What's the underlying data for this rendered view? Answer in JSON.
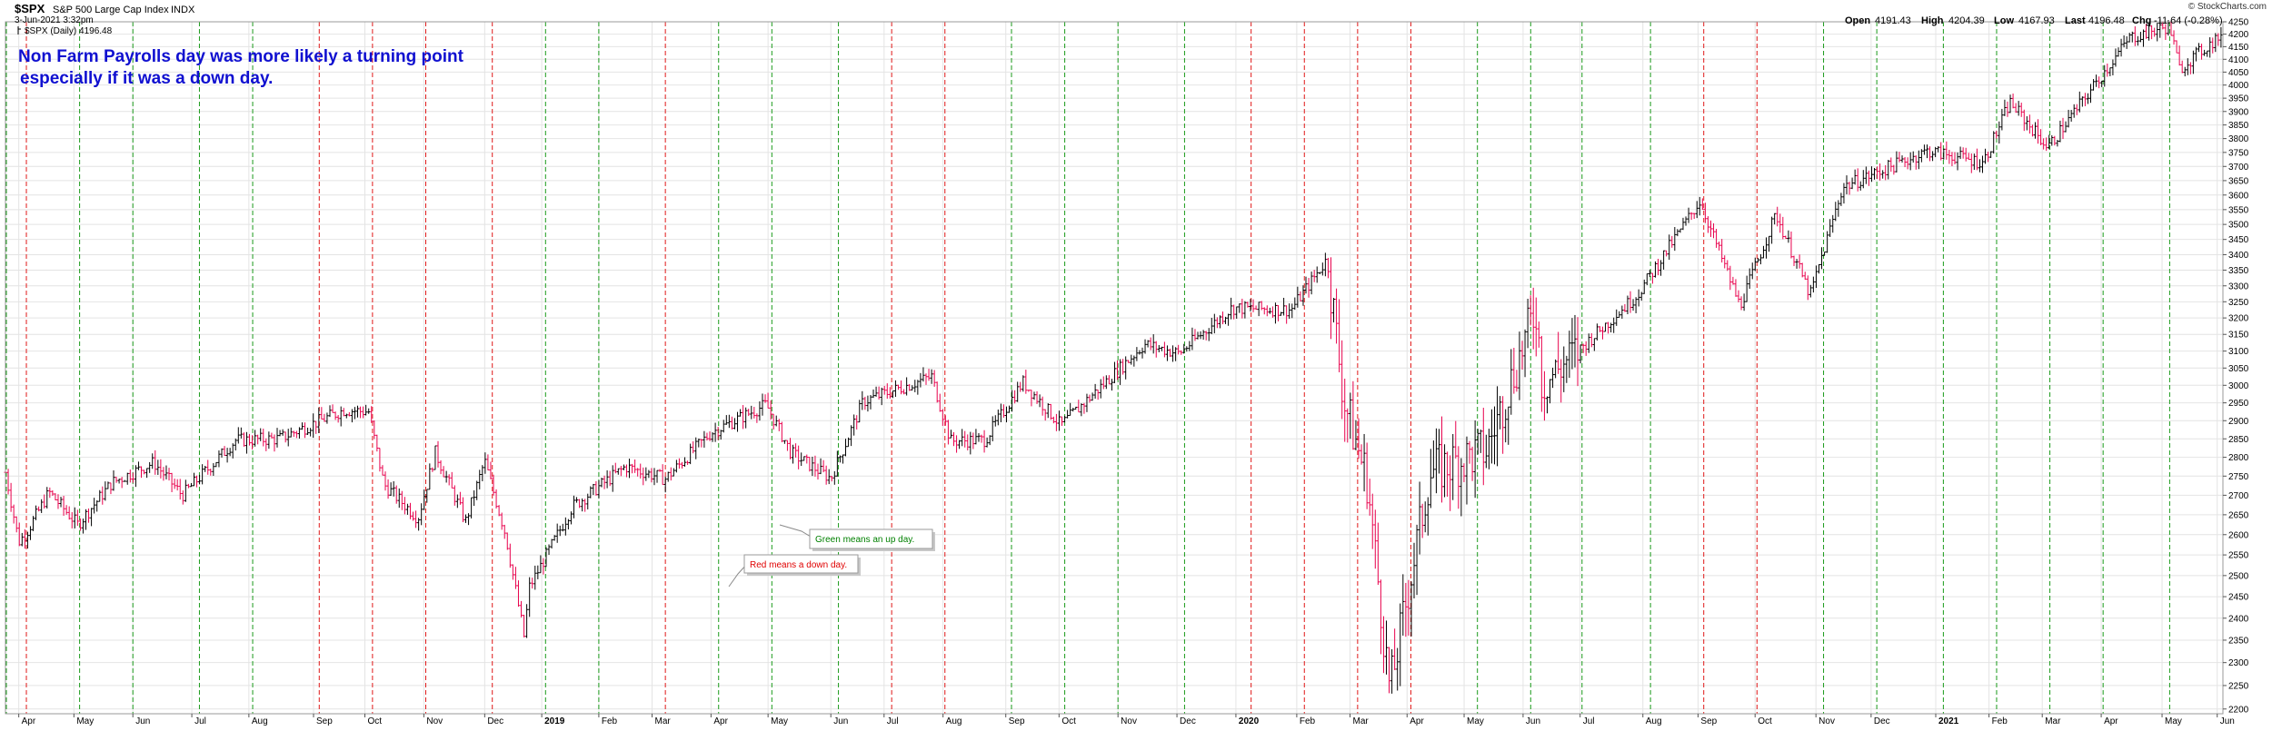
{
  "header": {
    "symbol": "$SPX",
    "name": "S&P 500 Large Cap Index",
    "exchange": "INDX",
    "date": "3-Jun-2021 3:32pm",
    "source": "© StockCharts.com",
    "series_label": "$SPX (Daily) 4196.48",
    "ohlc": {
      "open_label": "Open",
      "open": "4191.43",
      "high_label": "High",
      "high": "4204.39",
      "low_label": "Low",
      "low": "4167.93",
      "last_label": "Last",
      "last": "4196.48",
      "chg_label": "Chg",
      "chg": "-11.64 (-0.28%)"
    }
  },
  "annotation": {
    "line1": "Non Farm Payrolls day was more likely a turning point",
    "line2": "especially if it was a down day.",
    "color": "#1010d0"
  },
  "notes": {
    "green": "Green means an up day.",
    "red": "Red means a down day.",
    "green_color": "#008000",
    "red_color": "#e00000"
  },
  "colors": {
    "up": "#000000",
    "down": "#e8004c",
    "nfp_up": "#1a9a1a",
    "nfp_down": "#e01818",
    "grid": "#e4e4e4"
  },
  "chart_data": {
    "type": "ohlc",
    "title": "$SPX S&P 500 Large Cap Index",
    "y_scale": "log",
    "ylim": [
      2190,
      4250
    ],
    "y_ticks": [
      2200,
      2250,
      2300,
      2350,
      2400,
      2450,
      2500,
      2550,
      2600,
      2650,
      2700,
      2750,
      2800,
      2850,
      2900,
      2950,
      3000,
      3050,
      3100,
      3150,
      3200,
      3250,
      3300,
      3350,
      3400,
      3450,
      3500,
      3550,
      3600,
      3650,
      3700,
      3750,
      3800,
      3850,
      3900,
      3950,
      4000,
      4050,
      4100,
      4150,
      4200,
      4250
    ],
    "xlim": [
      "2018-03-26",
      "2021-06-04"
    ],
    "x_ticks": [
      {
        "date": "2018-04-02",
        "label": "Apr"
      },
      {
        "date": "2018-05-01",
        "label": "May"
      },
      {
        "date": "2018-06-01",
        "label": "Jun"
      },
      {
        "date": "2018-07-02",
        "label": "Jul"
      },
      {
        "date": "2018-08-01",
        "label": "Aug"
      },
      {
        "date": "2018-09-04",
        "label": "Sep"
      },
      {
        "date": "2018-10-01",
        "label": "Oct"
      },
      {
        "date": "2018-11-01",
        "label": "Nov"
      },
      {
        "date": "2018-12-03",
        "label": "Dec"
      },
      {
        "date": "2019-01-02",
        "label": "2019",
        "bold": true
      },
      {
        "date": "2019-02-01",
        "label": "Feb"
      },
      {
        "date": "2019-03-01",
        "label": "Mar"
      },
      {
        "date": "2019-04-01",
        "label": "Apr"
      },
      {
        "date": "2019-05-01",
        "label": "May"
      },
      {
        "date": "2019-06-03",
        "label": "Jun"
      },
      {
        "date": "2019-07-01",
        "label": "Jul"
      },
      {
        "date": "2019-08-01",
        "label": "Aug"
      },
      {
        "date": "2019-09-03",
        "label": "Sep"
      },
      {
        "date": "2019-10-01",
        "label": "Oct"
      },
      {
        "date": "2019-11-01",
        "label": "Nov"
      },
      {
        "date": "2019-12-02",
        "label": "Dec"
      },
      {
        "date": "2020-01-02",
        "label": "2020",
        "bold": true
      },
      {
        "date": "2020-02-03",
        "label": "Feb"
      },
      {
        "date": "2020-03-02",
        "label": "Mar"
      },
      {
        "date": "2020-04-01",
        "label": "Apr"
      },
      {
        "date": "2020-05-01",
        "label": "May"
      },
      {
        "date": "2020-06-01",
        "label": "Jun"
      },
      {
        "date": "2020-07-01",
        "label": "Jul"
      },
      {
        "date": "2020-08-03",
        "label": "Aug"
      },
      {
        "date": "2020-09-01",
        "label": "Sep"
      },
      {
        "date": "2020-10-01",
        "label": "Oct"
      },
      {
        "date": "2020-11-02",
        "label": "Nov"
      },
      {
        "date": "2020-12-01",
        "label": "Dec"
      },
      {
        "date": "2021-01-04",
        "label": "2021",
        "bold": true
      },
      {
        "date": "2021-02-01",
        "label": "Feb"
      },
      {
        "date": "2021-03-01",
        "label": "Mar"
      },
      {
        "date": "2021-04-01",
        "label": "Apr"
      },
      {
        "date": "2021-05-03",
        "label": "May"
      },
      {
        "date": "2021-06-01",
        "label": "Jun"
      }
    ],
    "nfp_days": [
      {
        "date": "2018-03-09",
        "up": true
      },
      {
        "date": "2018-04-06",
        "up": false
      },
      {
        "date": "2018-05-04",
        "up": true
      },
      {
        "date": "2018-06-01",
        "up": true
      },
      {
        "date": "2018-07-06",
        "up": true
      },
      {
        "date": "2018-08-03",
        "up": true
      },
      {
        "date": "2018-09-07",
        "up": false
      },
      {
        "date": "2018-10-05",
        "up": false
      },
      {
        "date": "2018-11-02",
        "up": false
      },
      {
        "date": "2018-12-07",
        "up": false
      },
      {
        "date": "2019-01-04",
        "up": true
      },
      {
        "date": "2019-02-01",
        "up": true
      },
      {
        "date": "2019-03-08",
        "up": false
      },
      {
        "date": "2019-04-05",
        "up": true
      },
      {
        "date": "2019-05-03",
        "up": true
      },
      {
        "date": "2019-06-07",
        "up": true
      },
      {
        "date": "2019-07-05",
        "up": false
      },
      {
        "date": "2019-08-02",
        "up": false
      },
      {
        "date": "2019-09-06",
        "up": true
      },
      {
        "date": "2019-10-04",
        "up": true
      },
      {
        "date": "2019-11-01",
        "up": true
      },
      {
        "date": "2019-12-06",
        "up": true
      },
      {
        "date": "2020-01-10",
        "up": false
      },
      {
        "date": "2020-02-07",
        "up": false
      },
      {
        "date": "2020-03-06",
        "up": false
      },
      {
        "date": "2020-04-03",
        "up": false
      },
      {
        "date": "2020-05-08",
        "up": true
      },
      {
        "date": "2020-06-05",
        "up": true
      },
      {
        "date": "2020-07-02",
        "up": true
      },
      {
        "date": "2020-08-07",
        "up": true
      },
      {
        "date": "2020-09-04",
        "up": false
      },
      {
        "date": "2020-10-02",
        "up": false
      },
      {
        "date": "2020-11-06",
        "up": true
      },
      {
        "date": "2020-12-04",
        "up": true
      },
      {
        "date": "2021-01-08",
        "up": true
      },
      {
        "date": "2021-02-05",
        "up": true
      },
      {
        "date": "2021-03-05",
        "up": true
      },
      {
        "date": "2021-04-02",
        "up": true
      },
      {
        "date": "2021-05-07",
        "up": true
      }
    ],
    "close_path": [
      [
        "2018-03-26",
        2760
      ],
      [
        "2018-04-02",
        2582
      ],
      [
        "2018-04-06",
        2605
      ],
      [
        "2018-04-18",
        2708
      ],
      [
        "2018-05-03",
        2625
      ],
      [
        "2018-05-21",
        2733
      ],
      [
        "2018-06-12",
        2786
      ],
      [
        "2018-06-27",
        2700
      ],
      [
        "2018-07-25",
        2846
      ],
      [
        "2018-08-17",
        2850
      ],
      [
        "2018-09-20",
        2930
      ],
      [
        "2018-10-03",
        2925
      ],
      [
        "2018-10-11",
        2728
      ],
      [
        "2018-10-29",
        2641
      ],
      [
        "2018-11-07",
        2813
      ],
      [
        "2018-11-23",
        2633
      ],
      [
        "2018-12-03",
        2790
      ],
      [
        "2018-12-14",
        2600
      ],
      [
        "2018-12-24",
        2351
      ],
      [
        "2018-12-26",
        2468
      ],
      [
        "2019-01-18",
        2670
      ],
      [
        "2019-02-15",
        2775
      ],
      [
        "2019-03-08",
        2743
      ],
      [
        "2019-04-01",
        2867
      ],
      [
        "2019-04-30",
        2945
      ],
      [
        "2019-05-13",
        2812
      ],
      [
        "2019-06-03",
        2744
      ],
      [
        "2019-06-20",
        2954
      ],
      [
        "2019-07-26",
        3025
      ],
      [
        "2019-08-05",
        2844
      ],
      [
        "2019-08-23",
        2847
      ],
      [
        "2019-09-12",
        3009
      ],
      [
        "2019-10-02",
        2887
      ],
      [
        "2019-11-15",
        3120
      ],
      [
        "2019-12-03",
        3093
      ],
      [
        "2019-12-31",
        3231
      ],
      [
        "2020-01-31",
        3225
      ],
      [
        "2020-02-19",
        3386
      ],
      [
        "2020-02-28",
        2954
      ],
      [
        "2020-03-11",
        2741
      ],
      [
        "2020-03-23",
        2237
      ],
      [
        "2020-04-13",
        2760
      ],
      [
        "2020-05-13",
        2820
      ],
      [
        "2020-06-08",
        3232
      ],
      [
        "2020-06-11",
        3002
      ],
      [
        "2020-07-31",
        3271
      ],
      [
        "2020-09-02",
        3580
      ],
      [
        "2020-09-23",
        3237
      ],
      [
        "2020-10-12",
        3535
      ],
      [
        "2020-10-30",
        3270
      ],
      [
        "2020-11-16",
        3627
      ],
      [
        "2020-12-31",
        3756
      ],
      [
        "2021-01-29",
        3714
      ],
      [
        "2021-02-12",
        3935
      ],
      [
        "2021-03-04",
        3768
      ],
      [
        "2021-04-16",
        4185
      ],
      [
        "2021-05-07",
        4232
      ],
      [
        "2021-05-12",
        4063
      ],
      [
        "2021-06-03",
        4196
      ]
    ],
    "bar_count": 800,
    "last": 4196.48
  }
}
